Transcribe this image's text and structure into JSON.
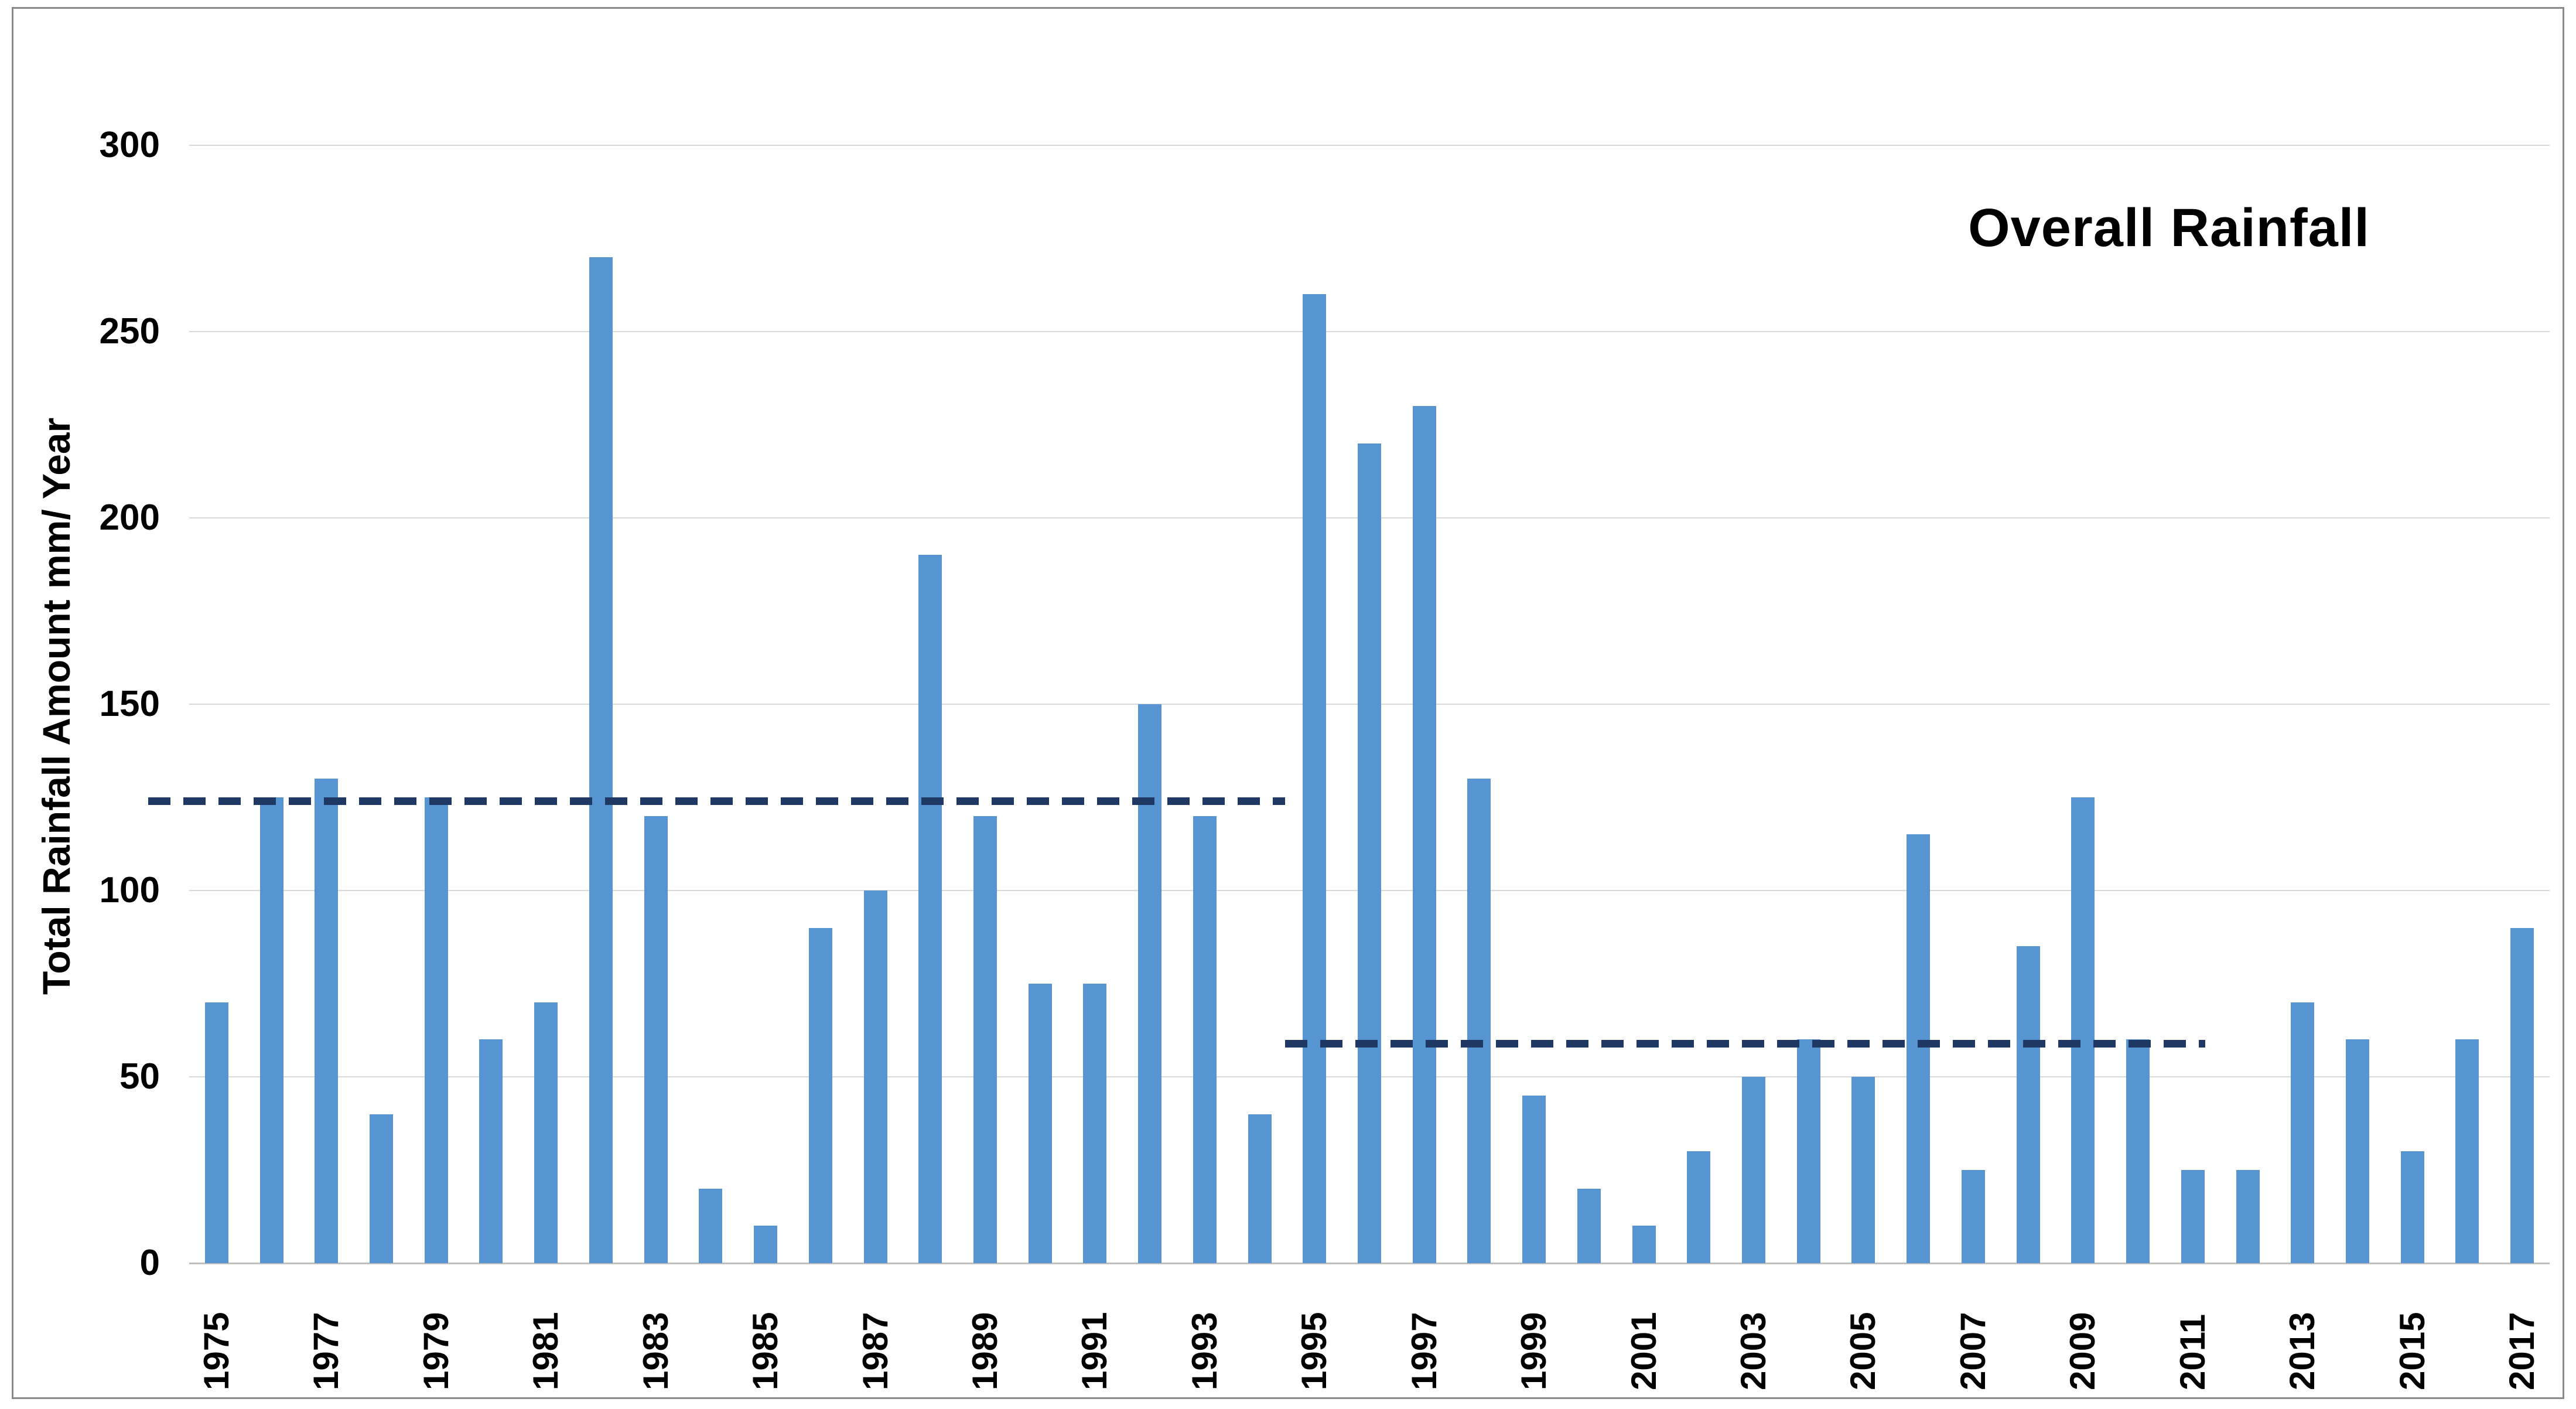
{
  "chart_data": {
    "type": "bar",
    "title": "Overall Rainfall",
    "xlabel": "",
    "ylabel": "Total Rainfall Amount  mm/ Year",
    "categories": [
      1975,
      1976,
      1977,
      1978,
      1979,
      1980,
      1981,
      1982,
      1983,
      1984,
      1985,
      1986,
      1987,
      1988,
      1989,
      1990,
      1991,
      1992,
      1993,
      1994,
      1995,
      1996,
      1997,
      1998,
      1999,
      2000,
      2001,
      2002,
      2003,
      2004,
      2005,
      2006,
      2007,
      2008,
      2009,
      2010,
      2011,
      2012,
      2013,
      2014,
      2015,
      2016,
      2017
    ],
    "values": [
      70,
      125,
      130,
      40,
      125,
      60,
      70,
      270,
      120,
      20,
      10,
      90,
      100,
      190,
      120,
      75,
      75,
      150,
      120,
      40,
      260,
      220,
      230,
      130,
      45,
      20,
      10,
      30,
      50,
      60,
      50,
      115,
      25,
      85,
      125,
      60,
      25,
      25,
      70,
      60,
      30,
      60,
      90
    ],
    "x_tick_labels": [
      "1975",
      "1977",
      "1979",
      "1981",
      "1983",
      "1985",
      "1987",
      "1989",
      "1991",
      "1993",
      "1995",
      "1997",
      "1999",
      "2001",
      "2003",
      "2005",
      "2007",
      "2009",
      "2011",
      "2013",
      "2015",
      "2017"
    ],
    "x_ticks_every": 2,
    "yticks": [
      0,
      50,
      100,
      150,
      200,
      250,
      300
    ],
    "ylim": [
      0,
      313
    ],
    "grid": "horizontal-only",
    "legend": "none",
    "bar_color": "#5795d2",
    "reference_lines": [
      {
        "name": "early-period-level",
        "value": 124,
        "years_span": "1975-1993",
        "x_start_frac": -0.0174,
        "x_end_frac": 0.4643,
        "color": "#1f3864",
        "style": "dashed"
      },
      {
        "name": "late-period-level",
        "value": 59,
        "years_span": "1994-2011",
        "x_start_frac": 0.4643,
        "x_end_frac": 0.8541,
        "color": "#1f3864",
        "style": "dashed"
      }
    ]
  },
  "colors": {
    "background": "#ffffff",
    "frame_border": "#8a8a8a",
    "gridline": "#d9d9d9",
    "axis_line": "#bfbfbf",
    "text": "#000000",
    "bar": "#5795d2",
    "dashed_line": "#1f3864"
  }
}
